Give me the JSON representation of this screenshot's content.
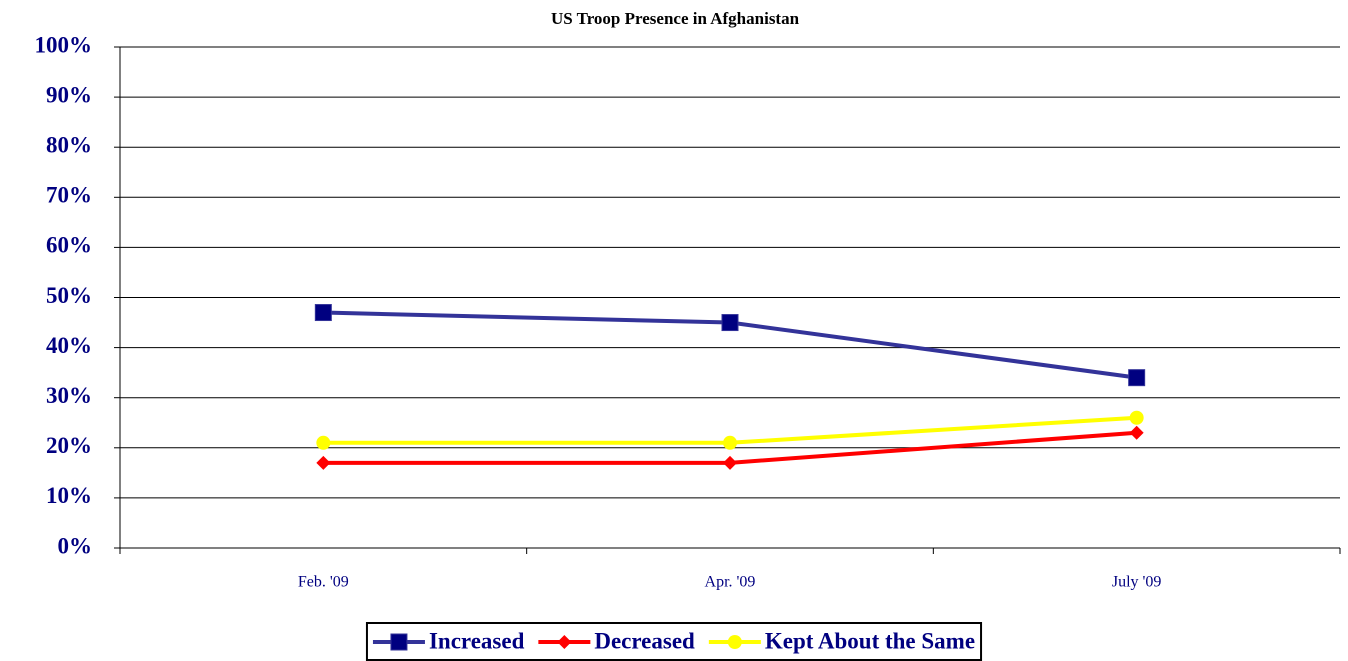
{
  "chart_data": {
    "type": "line",
    "title": "US Troop Presence in Afghanistan",
    "categories": [
      "Feb. '09",
      "Apr. '09",
      "July '09"
    ],
    "series": [
      {
        "name": "Increased",
        "color": "#333399",
        "marker": "square",
        "values": [
          47,
          45,
          34
        ]
      },
      {
        "name": "Decreased",
        "color": "#ff0000",
        "marker": "diamond",
        "values": [
          17,
          17,
          23
        ]
      },
      {
        "name": "Kept About the Same",
        "color": "#ffff00",
        "marker": "circle",
        "values": [
          21,
          21,
          26
        ]
      }
    ],
    "ylim": [
      0,
      100
    ],
    "yticks": [
      {
        "value": 0,
        "label": "0%"
      },
      {
        "value": 10,
        "label": "10%"
      },
      {
        "value": 20,
        "label": "20%"
      },
      {
        "value": 30,
        "label": "30%"
      },
      {
        "value": 40,
        "label": "40%"
      },
      {
        "value": 50,
        "label": "50%"
      },
      {
        "value": 60,
        "label": "60%"
      },
      {
        "value": 70,
        "label": "70%"
      },
      {
        "value": 80,
        "label": "80%"
      },
      {
        "value": 90,
        "label": "90%"
      },
      {
        "value": 100,
        "label": "100%"
      }
    ],
    "grid": true,
    "legend": "bottom"
  }
}
